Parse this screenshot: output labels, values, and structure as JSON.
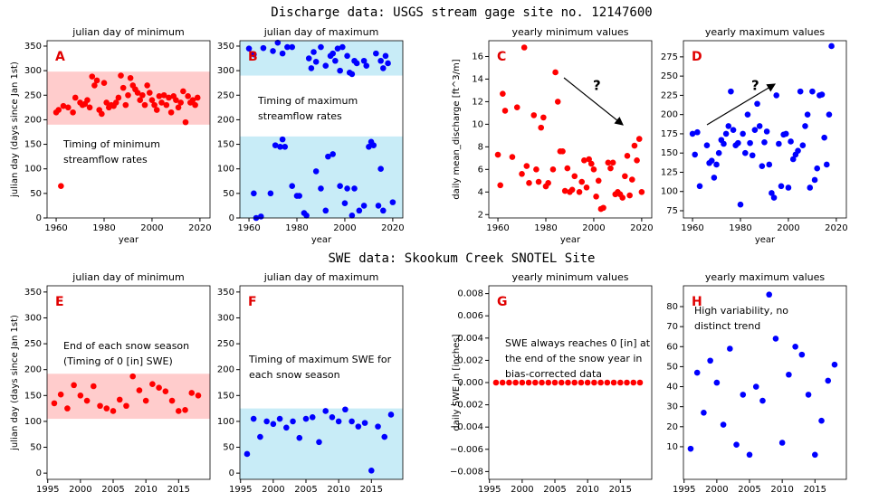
{
  "headings": [
    "Discharge data: USGS stream gage site no. 12147600",
    "SWE data: Skookum Creek SNOTEL Site"
  ],
  "chart_data": [
    {
      "type": "scatter",
      "title": "julian day of minimum",
      "letter": "A",
      "ylabel": "julian day (days since Jan 1st)",
      "xlabel": "year",
      "annotation": [
        "Timing of minimum",
        "streamflow rates"
      ],
      "color": "#ff0000",
      "bands": [
        [
          190,
          298
        ]
      ],
      "band_color": "#ffcccc",
      "x": [
        1960,
        1961,
        1962,
        1963,
        1965,
        1967,
        1968,
        1970,
        1971,
        1972,
        1973,
        1974,
        1975,
        1976,
        1977,
        1978,
        1979,
        1980,
        1981,
        1982,
        1983,
        1984,
        1985,
        1986,
        1987,
        1988,
        1989,
        1990,
        1991,
        1992,
        1993,
        1994,
        1995,
        1996,
        1997,
        1998,
        1999,
        2000,
        2001,
        2002,
        2003,
        2004,
        2005,
        2006,
        2007,
        2008,
        2009,
        2010,
        2011,
        2012,
        2013,
        2014,
        2015,
        2016,
        2017,
        2018,
        2019
      ],
      "values": [
        215,
        220,
        65,
        228,
        225,
        215,
        245,
        235,
        230,
        232,
        240,
        225,
        288,
        270,
        280,
        220,
        212,
        275,
        235,
        225,
        230,
        228,
        235,
        245,
        290,
        265,
        230,
        250,
        285,
        270,
        262,
        255,
        240,
        250,
        230,
        270,
        255,
        240,
        230,
        220,
        248,
        235,
        250,
        230,
        245,
        215,
        248,
        240,
        225,
        235,
        258,
        195,
        248,
        235,
        240,
        230,
        245
      ],
      "xlim": [
        1956.2,
        2024.2
      ],
      "ylim": [
        0,
        361
      ],
      "xticks": [
        1960,
        1980,
        2000,
        2020
      ],
      "yticks": [
        0,
        50,
        100,
        150,
        200,
        250,
        300,
        350
      ]
    },
    {
      "type": "scatter",
      "title": "julian day of maximum",
      "letter": "B",
      "xlabel": "year",
      "annotation": [
        "Timing of maximum",
        "streamflow rates"
      ],
      "color": "#0000ff",
      "bands": [
        [
          290,
          361
        ],
        [
          0,
          166
        ]
      ],
      "band_color": "#c8ecf7",
      "x": [
        1960,
        1962,
        1966,
        1970,
        1972,
        1974,
        1976,
        1978,
        1985,
        1986,
        1987,
        1988,
        1990,
        1992,
        1994,
        1995,
        1996,
        1997,
        1998,
        1999,
        2001,
        2002,
        2003,
        2004,
        2005,
        2008,
        2009,
        2013,
        2015,
        2016,
        2017,
        2018,
        1962,
        1963,
        1965,
        1969,
        1971,
        1973,
        1974,
        1975,
        1978,
        1980,
        1981,
        1983,
        1984,
        1988,
        1990,
        1992,
        1993,
        1995,
        1998,
        2000,
        2001,
        2003,
        2004,
        2006,
        2008,
        2010,
        2011,
        2012,
        2014,
        2015,
        2016,
        2020
      ],
      "values": [
        345,
        333,
        346,
        340,
        357,
        335,
        348,
        348,
        325,
        305,
        338,
        318,
        348,
        310,
        330,
        335,
        320,
        345,
        300,
        348,
        330,
        296,
        293,
        320,
        315,
        320,
        310,
        335,
        320,
        305,
        330,
        315,
        50,
        0,
        3,
        50,
        148,
        145,
        160,
        145,
        65,
        45,
        45,
        10,
        5,
        95,
        60,
        15,
        125,
        130,
        65,
        30,
        60,
        5,
        60,
        15,
        25,
        145,
        155,
        148,
        25,
        100,
        15,
        32
      ],
      "xlim": [
        1956.2,
        2024.2
      ],
      "ylim": [
        0,
        361
      ],
      "xticks": [
        1960,
        1980,
        2000,
        2020
      ],
      "yticks": [
        0,
        50,
        100,
        150,
        200,
        250,
        300,
        350
      ]
    },
    {
      "type": "scatter",
      "title": "yearly minimum values",
      "letter": "C",
      "ylabel": "daily mean_discharge [ft^3/m]",
      "xlabel": "year",
      "annotation": [
        "?"
      ],
      "color": "#ff0000",
      "x": [
        1960,
        1961,
        1962,
        1963,
        1966,
        1968,
        1970,
        1971,
        1972,
        1973,
        1975,
        1976,
        1977,
        1978,
        1979,
        1980,
        1981,
        1983,
        1984,
        1985,
        1986,
        1987,
        1988,
        1989,
        1990,
        1991,
        1992,
        1994,
        1995,
        1996,
        1997,
        1998,
        1999,
        2000,
        2001,
        2002,
        2003,
        2004,
        2006,
        2007,
        2008,
        2009,
        2010,
        2011,
        2012,
        2013,
        2014,
        2015,
        2016,
        2017,
        2018,
        2019,
        2020
      ],
      "values": [
        7.3,
        4.6,
        12.7,
        11.2,
        7.1,
        11.5,
        5.6,
        16.8,
        6.3,
        4.8,
        10.8,
        6.0,
        4.9,
        9.7,
        10.6,
        4.5,
        4.8,
        6.0,
        14.6,
        12.0,
        7.6,
        7.6,
        4.1,
        6.1,
        4.0,
        4.2,
        5.4,
        4.0,
        4.9,
        6.8,
        4.4,
        6.9,
        6.5,
        6.0,
        3.6,
        5.0,
        2.5,
        2.6,
        6.6,
        6.1,
        6.6,
        3.8,
        4.0,
        3.8,
        3.5,
        5.4,
        7.2,
        3.7,
        5.1,
        8.1,
        6.8,
        8.7,
        4.0
      ],
      "xlim": [
        1956.2,
        2024.2
      ],
      "ylim": [
        1.7,
        17.4
      ],
      "xticks": [
        1960,
        1980,
        2000,
        2020
      ],
      "yticks": [
        2,
        4,
        6,
        8,
        10,
        12,
        14,
        16
      ]
    },
    {
      "type": "scatter",
      "title": "yearly maximum values",
      "letter": "D",
      "xlabel": "year",
      "annotation": [
        "?"
      ],
      "color": "#0000ff",
      "x": [
        1960,
        1961,
        1962,
        1963,
        1966,
        1967,
        1968,
        1969,
        1970,
        1971,
        1972,
        1973,
        1974,
        1975,
        1976,
        1977,
        1978,
        1979,
        1980,
        1981,
        1982,
        1983,
        1984,
        1985,
        1986,
        1987,
        1988,
        1989,
        1990,
        1991,
        1992,
        1993,
        1994,
        1995,
        1996,
        1997,
        1998,
        1999,
        2000,
        2001,
        2002,
        2003,
        2004,
        2005,
        2006,
        2007,
        2008,
        2009,
        2010,
        2011,
        2012,
        2013,
        2014,
        2015,
        2016,
        2017,
        2018
      ],
      "values": [
        175,
        148,
        177,
        107,
        160,
        137,
        140,
        118,
        135,
        150,
        167,
        162,
        175,
        185,
        230,
        180,
        160,
        163,
        83,
        175,
        150,
        200,
        163,
        147,
        180,
        214,
        185,
        133,
        164,
        178,
        135,
        98,
        92,
        225,
        162,
        107,
        174,
        175,
        105,
        165,
        142,
        148,
        153,
        230,
        160,
        185,
        200,
        105,
        230,
        115,
        130,
        225,
        226,
        170,
        135,
        200,
        289
      ],
      "xlim": [
        1956.2,
        2024.2
      ],
      "ylim": [
        65.6,
        296
      ],
      "xticks": [
        1960,
        1980,
        2000,
        2020
      ],
      "yticks": [
        75,
        100,
        125,
        150,
        175,
        200,
        225,
        250,
        275
      ]
    },
    {
      "type": "scatter",
      "title": "julian day of minimum",
      "letter": "E",
      "ylabel": "julian day (days since Jan 1st)",
      "xlabel": "year",
      "annotation": [
        "End of each snow season",
        "(Timing of 0 [in] SWE)"
      ],
      "color": "#ff0000",
      "bands": [
        [
          105,
          192
        ]
      ],
      "band_color": "#ffcccc",
      "x": [
        1996,
        1997,
        1998,
        1999,
        2000,
        2001,
        2002,
        2003,
        2004,
        2005,
        2006,
        2007,
        2008,
        2009,
        2010,
        2011,
        2012,
        2013,
        2014,
        2015,
        2016,
        2017,
        2018
      ],
      "values": [
        135,
        152,
        125,
        170,
        150,
        140,
        168,
        130,
        125,
        120,
        142,
        130,
        187,
        160,
        140,
        172,
        165,
        158,
        140,
        120,
        122,
        155,
        150
      ],
      "xlim": [
        1994.9,
        2019.8
      ],
      "ylim": [
        -12,
        362
      ],
      "xticks": [
        1995,
        2000,
        2005,
        2010,
        2015
      ],
      "yticks": [
        0,
        50,
        100,
        150,
        200,
        250,
        300,
        350
      ]
    },
    {
      "type": "scatter",
      "title": "julian day of maximum",
      "letter": "F",
      "xlabel": "year",
      "annotation": [
        "Timing of maximum SWE for",
        "each snow season"
      ],
      "color": "#0000ff",
      "bands": [
        [
          -12,
          125
        ]
      ],
      "band_color": "#c8ecf7",
      "x": [
        1996,
        1997,
        1998,
        1999,
        2000,
        2001,
        2002,
        2003,
        2004,
        2005,
        2006,
        2007,
        2008,
        2009,
        2010,
        2011,
        2012,
        2013,
        2014,
        2015,
        2016,
        2017,
        2018
      ],
      "values": [
        37,
        105,
        70,
        100,
        95,
        105,
        88,
        100,
        68,
        105,
        108,
        60,
        120,
        108,
        100,
        123,
        100,
        90,
        97,
        5,
        90,
        70,
        113
      ],
      "xlim": [
        1994.9,
        2019.8
      ],
      "ylim": [
        -12,
        362
      ],
      "xticks": [
        1995,
        2000,
        2005,
        2010,
        2015
      ],
      "yticks": [
        0,
        50,
        100,
        150,
        200,
        250,
        300,
        350
      ]
    },
    {
      "type": "scatter",
      "title": "yearly minimum values",
      "letter": "G",
      "ylabel": "daily SWE_in [inches]",
      "xlabel": "year",
      "annotation": [
        "SWE always reaches 0 [in] at",
        "the end of the snow year in",
        "bias-corrected data"
      ],
      "color": "#ff0000",
      "x": [
        1996,
        1997,
        1998,
        1999,
        2000,
        2001,
        2002,
        2003,
        2004,
        2005,
        2006,
        2007,
        2008,
        2009,
        2010,
        2011,
        2012,
        2013,
        2014,
        2015,
        2016,
        2017,
        2018
      ],
      "values": [
        0,
        0,
        0,
        0,
        0,
        0,
        0,
        0,
        0,
        0,
        0,
        0,
        0,
        0,
        0,
        0,
        0,
        0,
        0,
        0,
        0,
        0,
        0
      ],
      "xlim": [
        1994.9,
        2019.8
      ],
      "ylim": [
        -0.0087,
        0.0087
      ],
      "xticks": [
        1995,
        2000,
        2005,
        2010,
        2015
      ],
      "yticks": [
        {
          "value": -0.008,
          "label": "−0.008"
        },
        {
          "value": -0.006,
          "label": "−0.006"
        },
        {
          "value": -0.004,
          "label": "−0.004"
        },
        {
          "value": -0.002,
          "label": "−0.002"
        },
        {
          "value": 0,
          "label": "0.000"
        },
        0.002,
        0.004,
        0.006,
        0.008
      ]
    },
    {
      "type": "scatter",
      "title": "yearly maximum values",
      "letter": "H",
      "xlabel": "year",
      "annotation": [
        "High variability, no",
        "distinct trend"
      ],
      "color": "#0000ff",
      "x": [
        1996,
        1997,
        1998,
        1999,
        2000,
        2001,
        2002,
        2003,
        2004,
        2005,
        2006,
        2007,
        2008,
        2009,
        2010,
        2011,
        2012,
        2013,
        2014,
        2015,
        2016,
        2017,
        2018
      ],
      "values": [
        9,
        47,
        27,
        53,
        42,
        21,
        59,
        11,
        36,
        6,
        40,
        33,
        86,
        64,
        12,
        46,
        60,
        56,
        36,
        6,
        23,
        43,
        51
      ],
      "xlim": [
        1994.9,
        2019.8
      ],
      "ylim": [
        -6.3,
        90.4
      ],
      "xticks": [
        1995,
        2000,
        2005,
        2010,
        2015
      ],
      "yticks": [
        10,
        20,
        30,
        40,
        50,
        60,
        70,
        80
      ]
    }
  ]
}
